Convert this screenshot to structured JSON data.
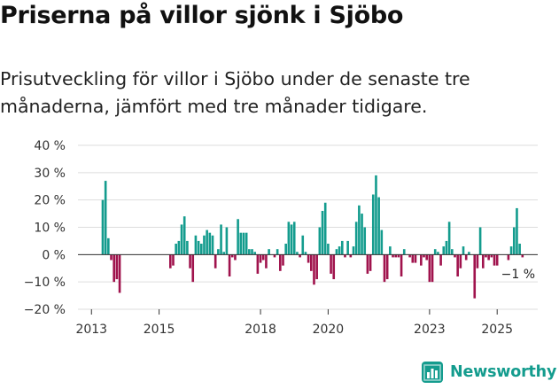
{
  "title": "Priserna på villor sjönk i Sjöbo",
  "subtitle": "Prisutveckling för villor i Sjöbo under de senaste tre månaderna, jämfört med tre månader tidigare.",
  "brand": {
    "name": "Newsworthy",
    "logo_icon": "newsworthy-logo-icon",
    "color": "#149c8e"
  },
  "chart_data": {
    "type": "bar",
    "title": "",
    "xlabel": "",
    "ylabel": "",
    "x_ticks": [
      "2013",
      "2015",
      "2018",
      "2020",
      "2023",
      "2025"
    ],
    "x_tick_positions": [
      2013.0,
      2015.0,
      2018.0,
      2020.0,
      2023.0,
      2025.0
    ],
    "x_range": [
      2012.6,
      2026.2
    ],
    "ylim": [
      -20,
      40
    ],
    "y_ticks": [
      40,
      30,
      20,
      10,
      0,
      -10,
      -20
    ],
    "y_tick_labels": [
      "40 %",
      "30 %",
      "20 %",
      "10 %",
      "0 %",
      "−10 %",
      "−20 %"
    ],
    "grid": true,
    "colors": {
      "positive": "#149c8e",
      "negative": "#a0134d",
      "grid": "#dddddd",
      "axis": "#333333"
    },
    "last_value_label": "−1 %",
    "start": 2013.3333,
    "step": 0.08333,
    "values": [
      20,
      27,
      6,
      -2,
      -10,
      -9,
      -14,
      0,
      0,
      0,
      0,
      0,
      0,
      0,
      0,
      0,
      0,
      0,
      0,
      0,
      0,
      0,
      0,
      0,
      -5,
      -4,
      4,
      5,
      11,
      14,
      5,
      -5,
      -10,
      7,
      5,
      4,
      7,
      9,
      8,
      7,
      -5,
      2,
      11,
      1,
      10,
      -8,
      -1,
      -2,
      13,
      8,
      8,
      8,
      2,
      2,
      1,
      -7,
      -3,
      -2,
      -5,
      2,
      0,
      -1,
      2,
      -6,
      -4,
      4,
      12,
      11,
      12,
      1,
      -1,
      7,
      1,
      -3,
      -6,
      -11,
      -9,
      10,
      16,
      19,
      4,
      -7,
      -9,
      2,
      3,
      5,
      -1,
      5,
      -1,
      3,
      12,
      18,
      15,
      10,
      -7,
      -6,
      22,
      29,
      21,
      9,
      -10,
      -9,
      3,
      -1,
      -1,
      -1,
      -8,
      2,
      0,
      -1,
      -3,
      -3,
      0,
      -4,
      -1,
      -2,
      -10,
      -10,
      2,
      1,
      -4,
      3,
      5,
      12,
      2,
      -1,
      -8,
      -5,
      3,
      -2,
      1,
      0,
      -16,
      -5,
      10,
      -5,
      -1,
      -2,
      -1,
      -4,
      -4,
      0,
      0,
      0,
      -2,
      3,
      10,
      17,
      4,
      -1
    ]
  }
}
